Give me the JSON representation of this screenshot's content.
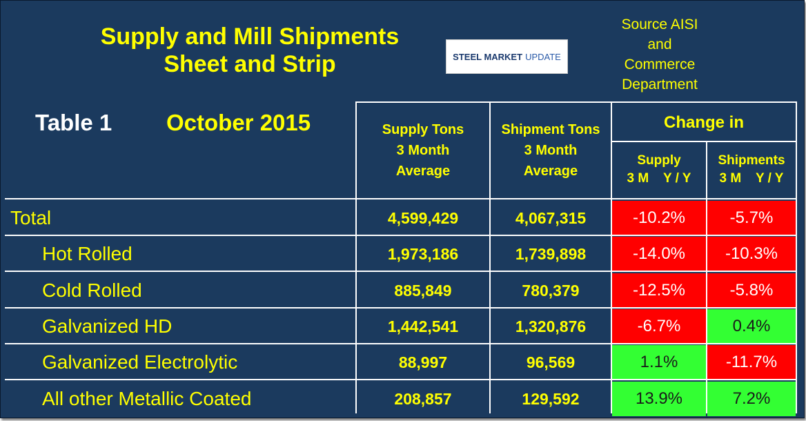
{
  "title": {
    "line1": "Supply and Mill Shipments",
    "line2": "Sheet and Strip"
  },
  "logo": {
    "bold": "STEEL MARKET",
    "regular": "UPDATE"
  },
  "source": {
    "line1": "Source AISI",
    "line2": "and",
    "line3": "Commerce",
    "line4": "Department"
  },
  "table_label": "Table 1",
  "month_label": "October 2015",
  "headers": {
    "supply": [
      "Supply Tons",
      "3 Month",
      "Average"
    ],
    "shipment": [
      "Shipment Tons",
      "3 Month",
      "Average"
    ],
    "change": "Change in",
    "change_supply": [
      "Supply",
      "3 M    Y / Y"
    ],
    "change_shipments": [
      "Shipments",
      "3 M    Y / Y"
    ]
  },
  "rows": [
    {
      "label": "Total",
      "supply": "4,599,429",
      "shipments": "4,067,315",
      "supply_change": "-10.2%",
      "shipments_change": "-5.7%"
    },
    {
      "label": "Hot Rolled",
      "supply": "1,973,186",
      "shipments": "1,739,898",
      "supply_change": "-14.0%",
      "shipments_change": "-10.3%"
    },
    {
      "label": "Cold Rolled",
      "supply": "885,849",
      "shipments": "780,379",
      "supply_change": "-12.5%",
      "shipments_change": "-5.8%"
    },
    {
      "label": "Galvanized HD",
      "supply": "1,442,541",
      "shipments": "1,320,876",
      "supply_change": "-6.7%",
      "shipments_change": "0.4%"
    },
    {
      "label": "Galvanized Electrolytic",
      "supply": "88,997",
      "shipments": "96,569",
      "supply_change": "1.1%",
      "shipments_change": "-11.7%"
    },
    {
      "label": "All other Metallic Coated",
      "supply": "208,857",
      "shipments": "129,592",
      "supply_change": "13.9%",
      "shipments_change": "7.2%"
    }
  ],
  "colors": {
    "background": "#1b3a5e",
    "text": "#ffff00",
    "negative": "#ff0000",
    "positive": "#33ff33"
  }
}
